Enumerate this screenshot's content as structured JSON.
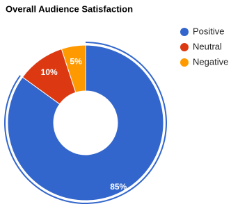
{
  "chart_data": {
    "type": "donut",
    "title": "Overall Audience Satisfaction",
    "categories": [
      "Positive",
      "Neutral",
      "Negative"
    ],
    "values": [
      85,
      10,
      5
    ],
    "value_labels": [
      "85%",
      "10%",
      "5%"
    ],
    "colors": [
      "#3366cc",
      "#dc3912",
      "#ff9900"
    ],
    "legend": "right"
  }
}
